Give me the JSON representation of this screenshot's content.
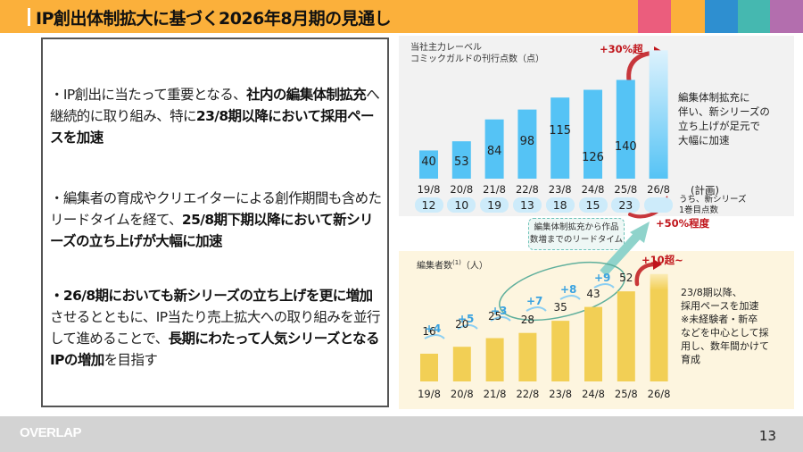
{
  "header": {
    "title": "IP創出体制拡大に基づく2026年8月期の見通し",
    "swatch_colors": [
      "#FBB03B",
      "#EB5D7D",
      "#FBB03B",
      "#2E8FD0",
      "#45B8B0",
      "#B36EAE"
    ]
  },
  "left_panel": {
    "bullets": [
      {
        "parts": [
          {
            "text": "・IP創出に当たって重要となる、",
            "bold": false
          },
          {
            "text": "社内の編集体制拡充",
            "bold": true
          },
          {
            "text": "へ継続的に取り組み、特に",
            "bold": false
          },
          {
            "text": "23/8期以降において採用ペースを加速",
            "bold": true
          }
        ]
      },
      {
        "parts": [
          {
            "text": "・編集者の育成やクリエイターによる創作期間も含めたリードタイムを経て、",
            "bold": false
          },
          {
            "text": "25/8期下期以降において新シリーズの立ち上げが大幅に加速",
            "bold": true
          }
        ]
      },
      {
        "parts": [
          {
            "text": "・26/8期においても新シリーズの立ち上げを更に増加",
            "bold": true
          },
          {
            "text": "させるとともに、IP当たり売上拡大への取り組みを並行して進めることで、",
            "bold": false
          },
          {
            "text": "長期にわたって人気シリーズとなるIPの増加",
            "bold": true
          },
          {
            "text": "を目指す",
            "bold": false
          }
        ]
      }
    ]
  },
  "chart_data": [
    {
      "type": "bar",
      "title": "当社主力レーベル コミックガルドの刊行点数（点）",
      "title_lines": [
        "当社主力レーベル",
        "コミックガルドの刊行点数（点）"
      ],
      "categories": [
        "19/8",
        "20/8",
        "21/8",
        "22/8",
        "23/8",
        "24/8",
        "25/8",
        "26/8"
      ],
      "values": [
        40,
        53,
        84,
        98,
        115,
        126,
        140,
        182
      ],
      "value_labels": [
        "40",
        "53",
        "84",
        "98",
        "115",
        "126",
        "140",
        ""
      ],
      "planned_label": "(計画)",
      "bar_color": "#55C3F5",
      "sub_row": {
        "label_lines": [
          "うち、新シリーズ",
          "1巻目点数"
        ],
        "values": [
          "12",
          "10",
          "19",
          "13",
          "18",
          "15",
          "23",
          ""
        ]
      },
      "annotations": {
        "growth_top": "+30%超",
        "growth_new_series": "+50%程度",
        "note_lines": [
          "編集体制拡充に",
          "伴い、新シリーズの",
          "立ち上げが足元で",
          "大幅に加速"
        ]
      },
      "ylim": [
        0,
        190
      ]
    },
    {
      "type": "bar",
      "title": "編集者数(1)（人）",
      "title_main": "編集者数",
      "title_sup": "(1)",
      "title_unit": "（人）",
      "categories": [
        "19/8",
        "20/8",
        "21/8",
        "22/8",
        "23/8",
        "24/8",
        "25/8",
        "26/8"
      ],
      "values": [
        16,
        20,
        25,
        28,
        35,
        43,
        52,
        62
      ],
      "value_labels": [
        "16",
        "20",
        "25",
        "28",
        "35",
        "43",
        "52",
        ""
      ],
      "deltas": [
        "+4",
        "+5",
        "+3",
        "+7",
        "+8",
        "+9"
      ],
      "bar_color": "#F2CF55",
      "annotations": {
        "growth_top": "+10超~",
        "note_lines": [
          "23/8期以降、",
          "採用ペースを加速",
          "※未経験者・新卒",
          "などを中心として採",
          "用し、数年間かけて",
          "育成"
        ]
      },
      "ylim": [
        0,
        66
      ]
    }
  ],
  "leadtime_box": {
    "lines": [
      "編集体制拡充から作品",
      "数増までのリードタイム"
    ]
  },
  "footer": {
    "logo": "OVERLAP",
    "page_number": "13"
  }
}
